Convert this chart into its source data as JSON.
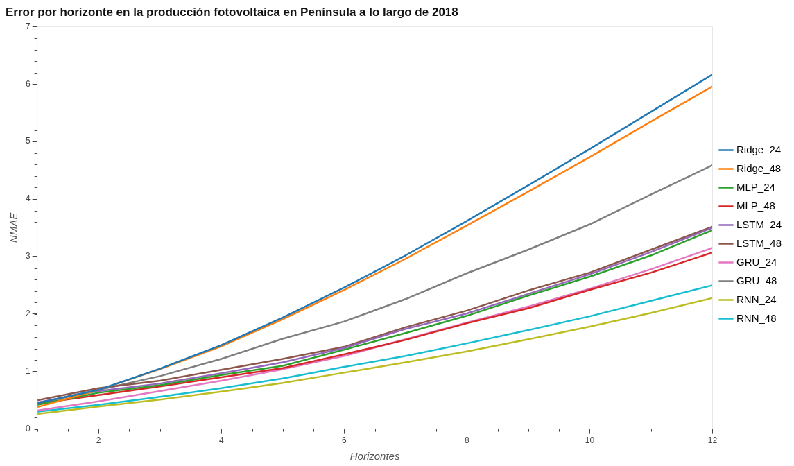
{
  "chart_data": {
    "type": "line",
    "title": "Error por horizonte en la producción fotovoltaica en Península a lo largo de 2018",
    "xlabel": "Horizontes",
    "ylabel": "NMAE",
    "x": [
      1,
      2,
      3,
      4,
      5,
      6,
      7,
      8,
      9,
      10,
      11,
      12
    ],
    "xlim": [
      1,
      12
    ],
    "xticks": [
      2,
      4,
      6,
      8,
      10,
      12
    ],
    "ylim": [
      0,
      7
    ],
    "yticks": [
      0,
      1,
      2,
      3,
      4,
      5,
      6,
      7
    ],
    "grid": false,
    "legend": "right",
    "marker": "none",
    "line_style": "solid",
    "series": [
      {
        "name": "Ridge_24",
        "color": "#1f77b4",
        "values": [
          0.45,
          0.68,
          1.05,
          1.46,
          1.94,
          2.46,
          3.02,
          3.62,
          4.24,
          4.87,
          5.52,
          6.17
        ]
      },
      {
        "name": "Ridge_48",
        "color": "#ff7f0e",
        "values": [
          0.38,
          0.68,
          1.04,
          1.44,
          1.91,
          2.42,
          2.96,
          3.54,
          4.13,
          4.73,
          5.35,
          5.96
        ]
      },
      {
        "name": "MLP_24",
        "color": "#2ca02c",
        "values": [
          0.42,
          0.63,
          0.76,
          0.94,
          1.1,
          1.38,
          1.67,
          1.97,
          2.32,
          2.65,
          3.02,
          3.46
        ]
      },
      {
        "name": "MLP_48",
        "color": "#d62728",
        "values": [
          0.44,
          0.59,
          0.74,
          0.9,
          1.06,
          1.3,
          1.55,
          1.84,
          2.1,
          2.42,
          2.72,
          3.07
        ]
      },
      {
        "name": "LSTM_24",
        "color": "#9467bd",
        "values": [
          0.46,
          0.66,
          0.79,
          0.97,
          1.16,
          1.41,
          1.74,
          2.01,
          2.35,
          2.69,
          3.08,
          3.5
        ]
      },
      {
        "name": "LSTM_48",
        "color": "#8c564b",
        "values": [
          0.5,
          0.71,
          0.84,
          1.03,
          1.22,
          1.43,
          1.77,
          2.06,
          2.41,
          2.72,
          3.12,
          3.52
        ]
      },
      {
        "name": "GRU_24",
        "color": "#e377c2",
        "values": [
          0.32,
          0.48,
          0.66,
          0.84,
          1.04,
          1.27,
          1.56,
          1.85,
          2.13,
          2.44,
          2.78,
          3.15
        ]
      },
      {
        "name": "GRU_48",
        "color": "#7f7f7f",
        "values": [
          0.45,
          0.68,
          0.92,
          1.22,
          1.57,
          1.87,
          2.26,
          2.71,
          3.12,
          3.56,
          4.08,
          4.59
        ]
      },
      {
        "name": "RNN_24",
        "color": "#bcbd22",
        "values": [
          0.26,
          0.39,
          0.51,
          0.65,
          0.8,
          0.98,
          1.16,
          1.35,
          1.56,
          1.78,
          2.02,
          2.28
        ]
      },
      {
        "name": "RNN_48",
        "color": "#17becf",
        "values": [
          0.3,
          0.42,
          0.56,
          0.71,
          0.88,
          1.08,
          1.27,
          1.49,
          1.72,
          1.96,
          2.23,
          2.5
        ]
      }
    ]
  }
}
